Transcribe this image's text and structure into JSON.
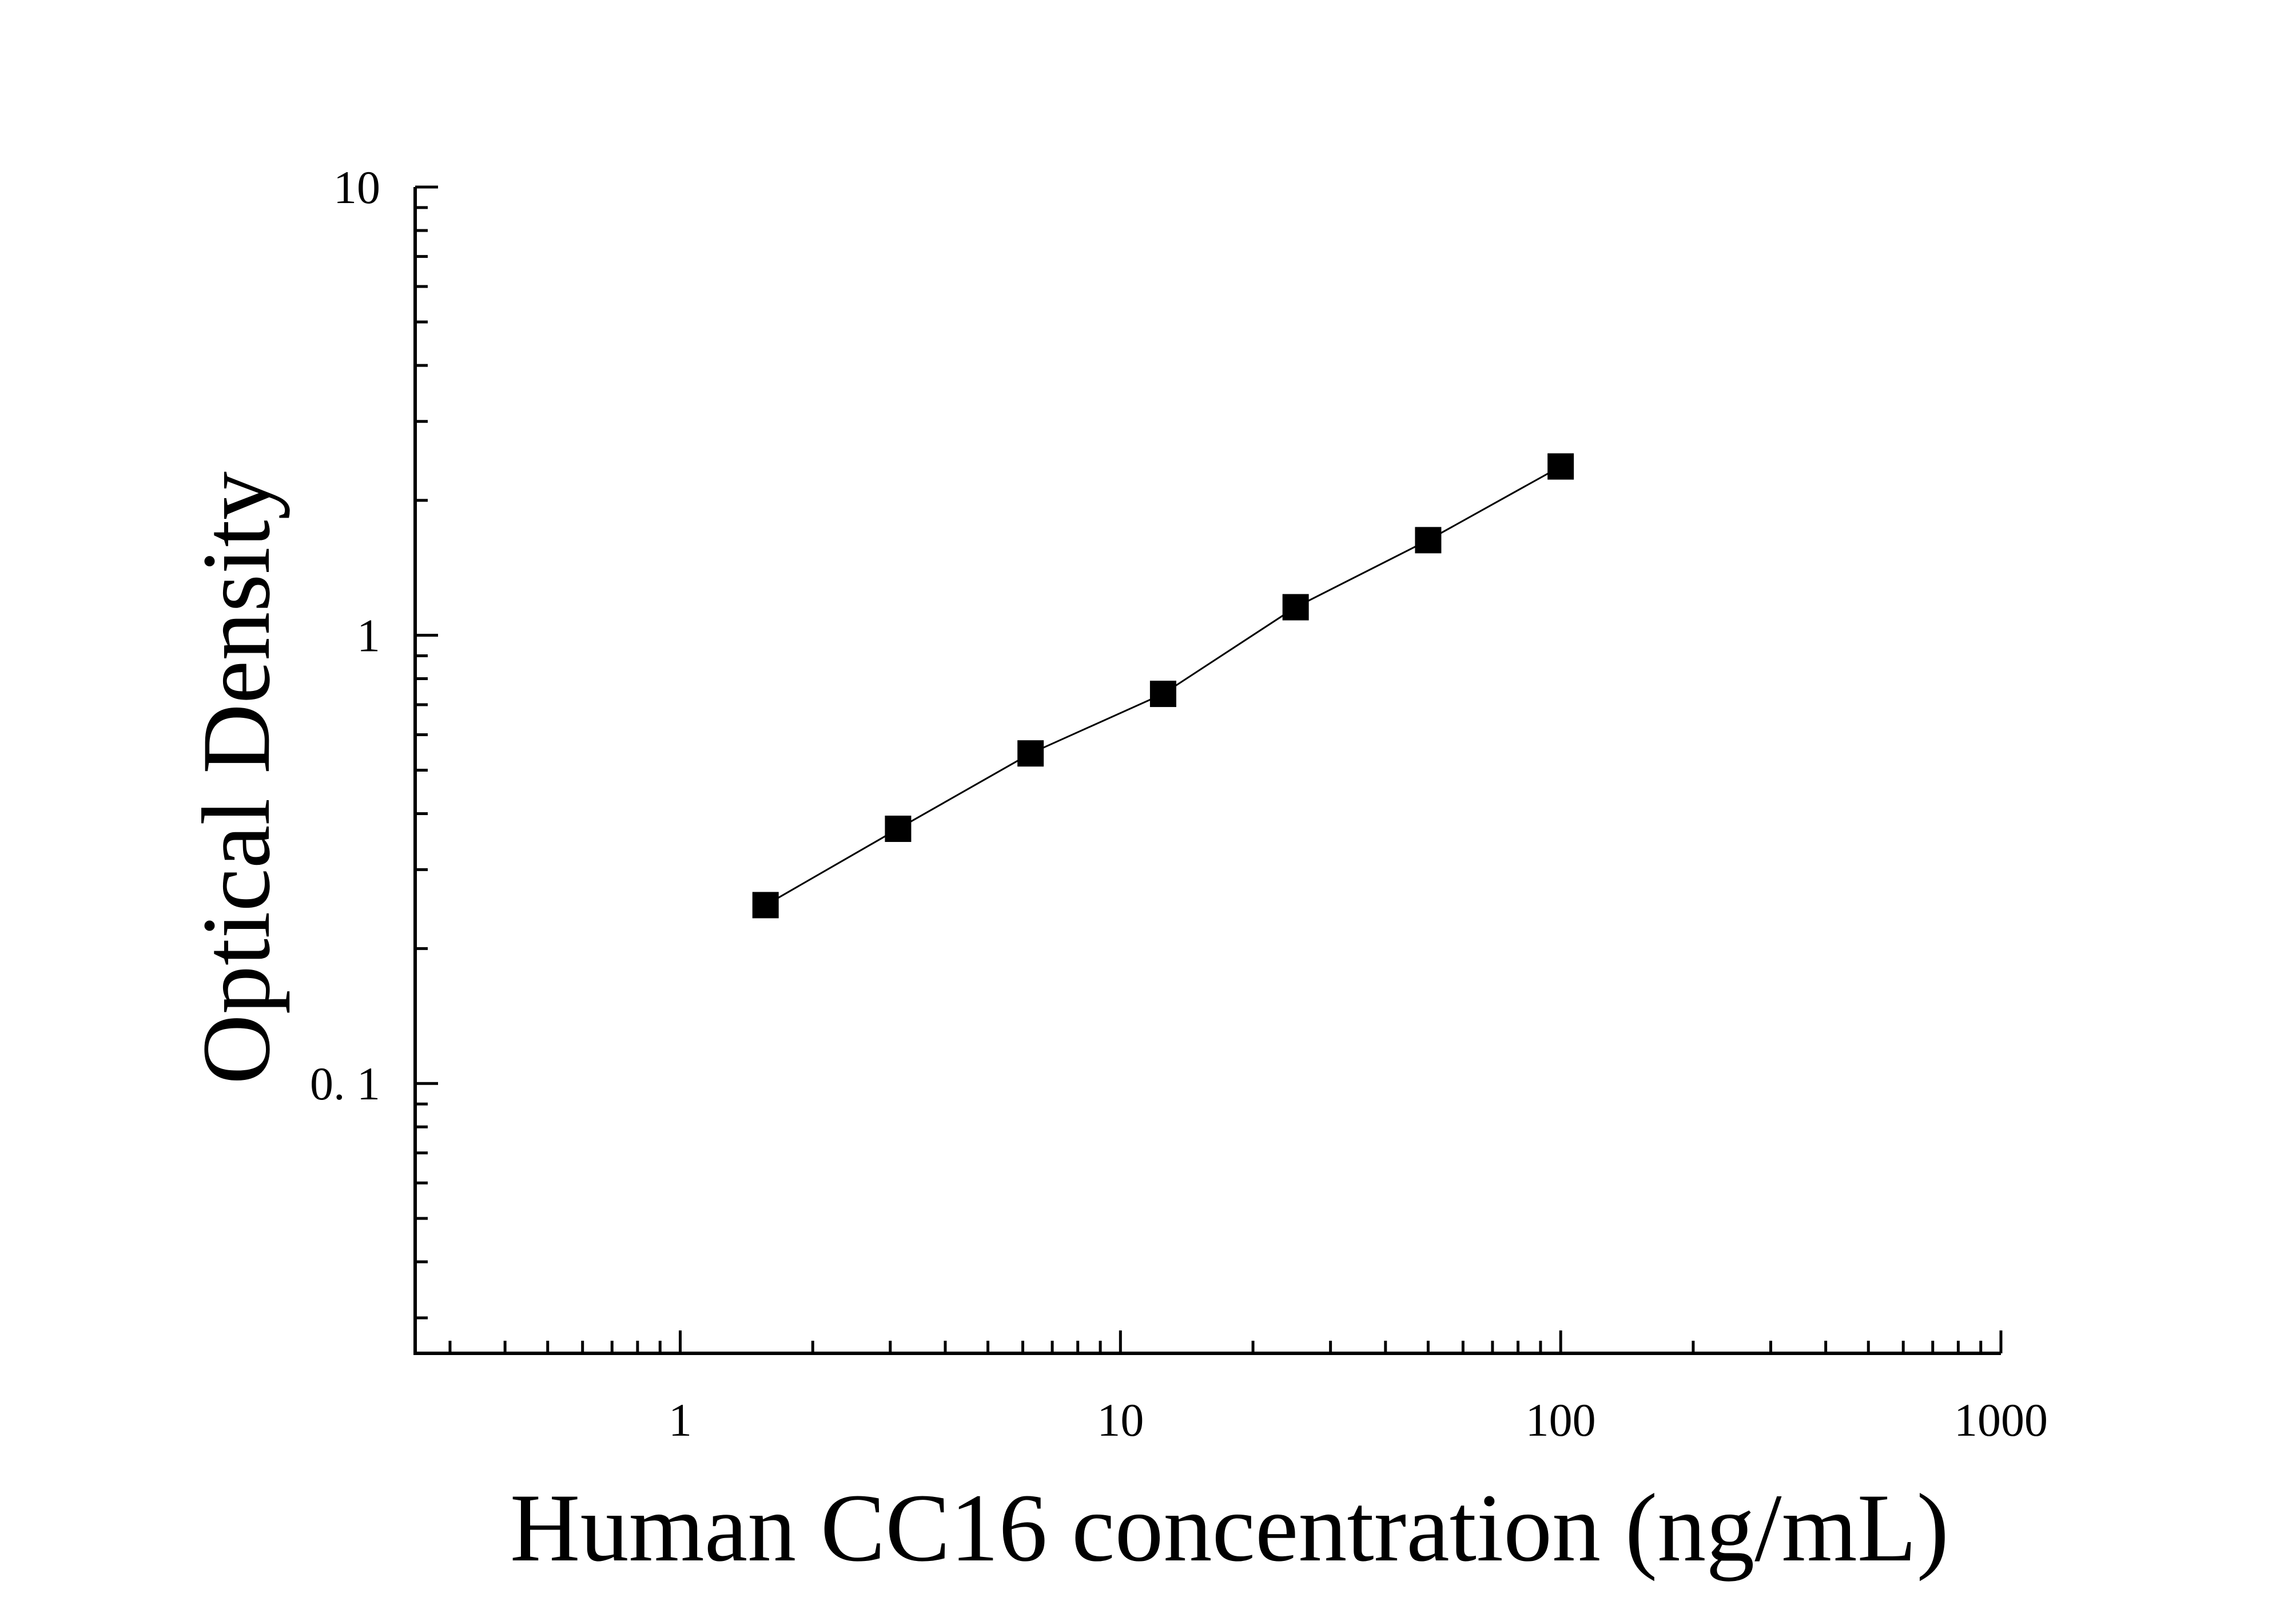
{
  "chart_data": {
    "type": "scatter",
    "xlabel": "Human CC16 concentration (ng/mL)",
    "ylabel": "Optical Density",
    "xscale": "log",
    "yscale": "log",
    "xlim": [
      0.25,
      1000
    ],
    "ylim": [
      0.025,
      10
    ],
    "x_ticks": [
      {
        "value": 1,
        "label": "1"
      },
      {
        "value": 10,
        "label": "10"
      },
      {
        "value": 100,
        "label": "100"
      },
      {
        "value": 1000,
        "label": "1000"
      }
    ],
    "y_ticks": [
      {
        "value": 0.1,
        "label": "0. 1"
      },
      {
        "value": 1,
        "label": "1"
      },
      {
        "value": 10,
        "label": "10"
      }
    ],
    "grid": false,
    "legend": false,
    "marker": "square",
    "marker_color": "#000000",
    "line_color": "#000000",
    "fit_line": true,
    "series": [
      {
        "x": [
          1.5625,
          3.125,
          6.25,
          12.5,
          25,
          50,
          100
        ],
        "y": [
          0.25,
          0.37,
          0.545,
          0.74,
          1.155,
          1.63,
          2.38
        ]
      }
    ]
  }
}
